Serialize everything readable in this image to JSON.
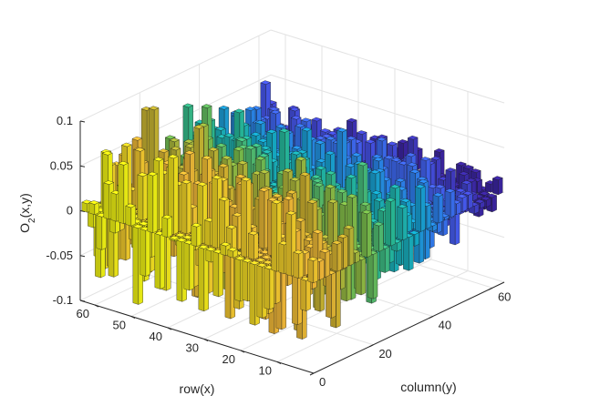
{
  "chart_data": {
    "type": "bar3",
    "colormap": "parula",
    "colormap_stops": [
      "#3e26a8",
      "#4a5ffd",
      "#2e87f7",
      "#14b2d3",
      "#2ac39d",
      "#7fc64f",
      "#d9ba30",
      "#fdc03b",
      "#f9fb15"
    ],
    "grid": true,
    "xlabel": "column(y)",
    "ylabel": "row(x)",
    "zlabel": "O_2(x,y)",
    "x_range": [
      0,
      64
    ],
    "y_range": [
      0,
      64
    ],
    "zlim": [
      -0.1,
      0.1
    ],
    "x_ticks": [
      0,
      20,
      40,
      60
    ],
    "y_ticks": [
      10,
      20,
      30,
      40,
      50,
      60
    ],
    "z_ticks": [
      -0.1,
      -0.05,
      0,
      0.05,
      0.1
    ],
    "z_tick_labels": [
      "-0.1",
      "-0.05",
      "0",
      "0.05",
      "0.1"
    ],
    "grid_size": [
      32,
      32
    ],
    "bar_spacing": 2,
    "value_model": "random per-cell values, |z| <= 0.08, larger magnitudes at low column(y)"
  }
}
